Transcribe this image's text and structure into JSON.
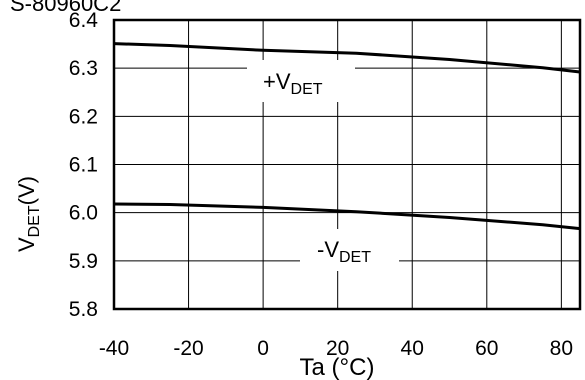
{
  "chart_data": {
    "type": "line",
    "title_fragment": "S-80960C2",
    "xlabel": "Ta (°C)",
    "ylabel": "VDET (V)",
    "ylabel_parts": {
      "main": "V",
      "sub": "DET",
      "unit": "(V)"
    },
    "xlim": [
      -40,
      85
    ],
    "ylim": [
      5.8,
      6.4
    ],
    "x_ticks": [
      -40,
      -20,
      0,
      20,
      40,
      60,
      80
    ],
    "x_tick_labels": [
      "-40",
      "-20",
      "0",
      "20",
      "40",
      "60",
      "80"
    ],
    "y_ticks": [
      5.8,
      5.9,
      6.0,
      6.1,
      6.2,
      6.3,
      6.4
    ],
    "y_tick_labels": [
      "5.8",
      "5.9",
      "6.0",
      "6.1",
      "6.2",
      "6.3",
      "6.4"
    ],
    "grid": true,
    "series": [
      {
        "name": "+VDET",
        "label_parts": {
          "prefix": "+V",
          "sub": "DET"
        },
        "x": [
          -40,
          -25,
          0,
          25,
          50,
          75,
          85
        ],
        "y": [
          6.351,
          6.347,
          6.337,
          6.331,
          6.318,
          6.301,
          6.292
        ]
      },
      {
        "name": "-VDET",
        "label_parts": {
          "prefix": "-V",
          "sub": "DET"
        },
        "x": [
          -40,
          -25,
          0,
          25,
          50,
          75,
          85
        ],
        "y": [
          6.018,
          6.017,
          6.011,
          6.002,
          5.99,
          5.975,
          5.967
        ]
      }
    ],
    "colors": {
      "line": "#000000",
      "grid": "#000000",
      "background": "#ffffff"
    }
  }
}
